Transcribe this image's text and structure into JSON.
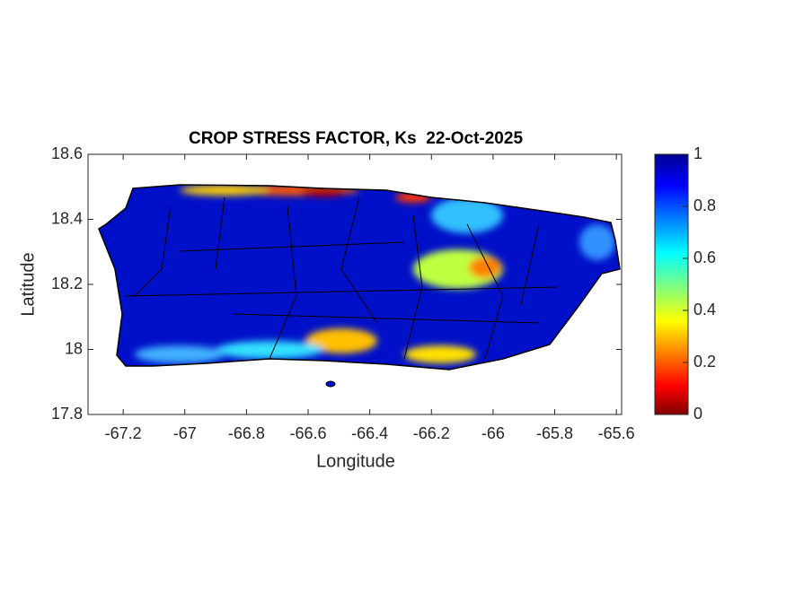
{
  "chart_data": {
    "type": "map",
    "title": "CROP STRESS FACTOR, Ks  22-Oct-2025",
    "x_label": "Longitude",
    "y_label": "Latitude",
    "xlim": [
      -67.314,
      -65.583
    ],
    "xticks": [
      -67.2,
      -67,
      -66.8,
      -66.6,
      -66.4,
      -66.2,
      -66,
      -65.8,
      -65.6
    ],
    "ylim": [
      17.8,
      18.6
    ],
    "yticks": [
      17.8,
      18,
      18.2,
      18.4,
      18.6
    ],
    "colorbar": {
      "lim": [
        0,
        1
      ],
      "ticks": [
        0,
        0.2,
        0.4,
        0.6,
        0.8,
        1
      ]
    }
  }
}
